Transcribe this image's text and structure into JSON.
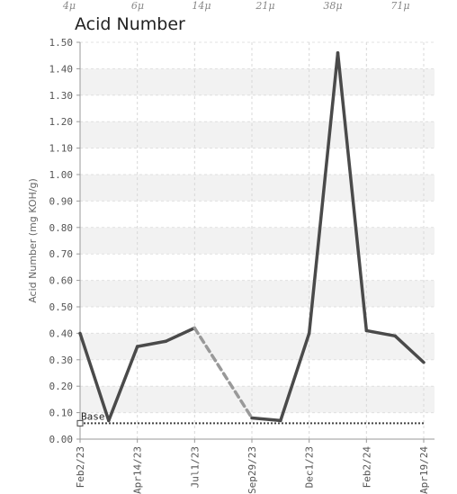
{
  "top_labels": [
    "4μ",
    "6μ",
    "14μ",
    "21μ",
    "38μ",
    "71μ"
  ],
  "chart_data": {
    "type": "line",
    "title": "Acid Number",
    "ylabel": "Acid Number (mg KOH/g)",
    "xlabel": "",
    "ylim": [
      0,
      1.5
    ],
    "yticks": [
      "0.00",
      "0.10",
      "0.20",
      "0.30",
      "0.40",
      "0.50",
      "0.60",
      "0.70",
      "0.80",
      "0.90",
      "1.00",
      "1.10",
      "1.20",
      "1.30",
      "1.40",
      "1.50"
    ],
    "xticks": [
      "Feb2/23",
      "Apr14/23",
      "Jul1/23",
      "Sep29/23",
      "Dec1/23",
      "Feb2/24",
      "Apr19/24"
    ],
    "grid": true,
    "series": [
      {
        "values": [
          {
            "x": "Feb2/23",
            "y": 0.4
          },
          {
            "x": "Mar7/23",
            "y": 0.07
          },
          {
            "x": "Apr14/23",
            "y": 0.35
          },
          {
            "x": "May22/23",
            "y": 0.37
          },
          {
            "x": "Jul1/23",
            "y": 0.42
          },
          {
            "x": "Sep29/23",
            "y": 0.08
          },
          {
            "x": "Oct30/23",
            "y": 0.07
          },
          {
            "x": "Dec1/23",
            "y": 0.4
          },
          {
            "x": "Jan2/24",
            "y": 1.46
          },
          {
            "x": "Feb2/24",
            "y": 0.41
          },
          {
            "x": "Mar12/24",
            "y": 0.39
          },
          {
            "x": "Apr19/24",
            "y": 0.29
          }
        ],
        "color": "#4a4a4a",
        "dashed_segments": [
          [
            4,
            5
          ]
        ]
      }
    ],
    "baseline": {
      "label": "Base",
      "value": 0.06,
      "color": "#444444"
    },
    "colors": {
      "line": "#4a4a4a",
      "dashed": "#999999",
      "band": "#f2f2f2",
      "gridline": "#cccccc"
    }
  }
}
